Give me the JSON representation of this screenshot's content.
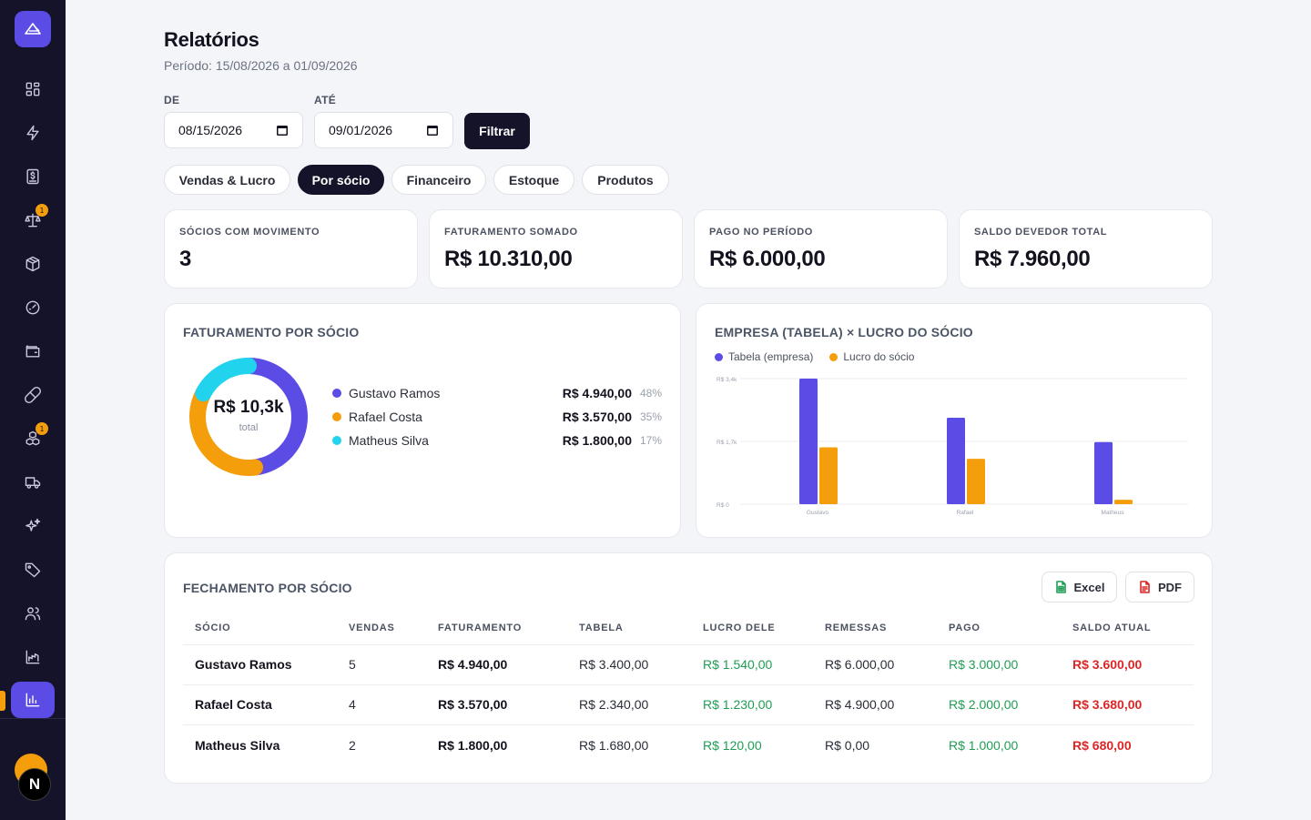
{
  "colors": {
    "accent": "#5b4ce6",
    "orange": "#f59e0b",
    "cyan": "#22d3ee",
    "dark": "#15132a",
    "green": "#1f9d55",
    "red": "#dc2626"
  },
  "sidebar": {
    "items": [
      {
        "name": "dashboard-icon"
      },
      {
        "name": "bolt-icon"
      },
      {
        "name": "dollar-doc-icon"
      },
      {
        "name": "scale-icon",
        "badge": "1"
      },
      {
        "name": "box-icon"
      },
      {
        "name": "gauge-icon"
      },
      {
        "name": "wallet-icon"
      },
      {
        "name": "pill-icon"
      },
      {
        "name": "boxes-icon",
        "badge": "1"
      },
      {
        "name": "truck-icon"
      },
      {
        "name": "sparkles-icon"
      },
      {
        "name": "tag-icon"
      },
      {
        "name": "users-icon"
      },
      {
        "name": "factory-chart-icon"
      },
      {
        "name": "bar-chart-icon",
        "active": true
      }
    ],
    "next_badge": "N"
  },
  "header": {
    "title": "Relatórios",
    "period": "Período: 15/08/2026 a 01/09/2026"
  },
  "filters": {
    "from_label": "DE",
    "from_value": "08/15/2026",
    "to_label": "ATÉ",
    "to_value": "09/01/2026",
    "filter_button": "Filtrar"
  },
  "tabs": [
    {
      "label": "Vendas & Lucro"
    },
    {
      "label": "Por sócio",
      "active": true
    },
    {
      "label": "Financeiro"
    },
    {
      "label": "Estoque"
    },
    {
      "label": "Produtos"
    }
  ],
  "kpis": [
    {
      "label": "SÓCIOS COM MOVIMENTO",
      "value": "3"
    },
    {
      "label": "FATURAMENTO SOMADO",
      "value": "R$ 10.310,00"
    },
    {
      "label": "PAGO NO PERÍODO",
      "value": "R$ 6.000,00"
    },
    {
      "label": "SALDO DEVEDOR TOTAL",
      "value": "R$ 7.960,00"
    }
  ],
  "revenue_card": {
    "title": "FATURAMENTO POR SÓCIO",
    "center_value": "R$ 10,3k",
    "center_label": "total",
    "legend": [
      {
        "name": "Gustavo Ramos",
        "value": "R$ 4.940,00",
        "pct": "48%"
      },
      {
        "name": "Rafael Costa",
        "value": "R$ 3.570,00",
        "pct": "35%"
      },
      {
        "name": "Matheus Silva",
        "value": "R$ 1.800,00",
        "pct": "17%"
      }
    ]
  },
  "compare_card": {
    "title": "EMPRESA (TABELA) × LUCRO DO SÓCIO"
  },
  "chart_data": [
    {
      "type": "pie",
      "categories": [
        "Gustavo Ramos",
        "Rafael Costa",
        "Matheus Silva"
      ],
      "values": [
        4940,
        3570,
        1800
      ],
      "colors": [
        "#5b4ce6",
        "#f59e0b",
        "#22d3ee"
      ],
      "donut": true
    },
    {
      "type": "bar",
      "categories": [
        "Gustavo",
        "Rafael",
        "Matheus"
      ],
      "series": [
        {
          "name": "Tabela (empresa)",
          "values": [
            3400,
            2340,
            1680
          ],
          "color": "#5b4ce6"
        },
        {
          "name": "Lucro do sócio",
          "values": [
            1540,
            1230,
            120
          ],
          "color": "#f59e0b"
        }
      ],
      "ylim": [
        0,
        3400
      ],
      "yticks": [
        {
          "value": 0,
          "label": "R$ 0"
        },
        {
          "value": 1700,
          "label": "R$ 1,7k"
        },
        {
          "value": 3400,
          "label": "R$ 3,4k"
        }
      ],
      "grid": true,
      "legend": "top-left"
    }
  ],
  "closing_card": {
    "title": "FECHAMENTO POR SÓCIO",
    "excel_label": "Excel",
    "pdf_label": "PDF",
    "columns": [
      "SÓCIO",
      "VENDAS",
      "FATURAMENTO",
      "TABELA",
      "LUCRO DELE",
      "REMESSAS",
      "PAGO",
      "SALDO ATUAL"
    ],
    "rows": [
      [
        "Gustavo Ramos",
        "5",
        "R$ 4.940,00",
        "R$ 3.400,00",
        "R$ 1.540,00",
        "R$ 6.000,00",
        "R$ 3.000,00",
        "R$ 3.600,00"
      ],
      [
        "Rafael Costa",
        "4",
        "R$ 3.570,00",
        "R$ 2.340,00",
        "R$ 1.230,00",
        "R$ 4.900,00",
        "R$ 2.000,00",
        "R$ 3.680,00"
      ],
      [
        "Matheus Silva",
        "2",
        "R$ 1.800,00",
        "R$ 1.680,00",
        "R$ 120,00",
        "R$ 0,00",
        "R$ 1.000,00",
        "R$ 680,00"
      ]
    ]
  }
}
